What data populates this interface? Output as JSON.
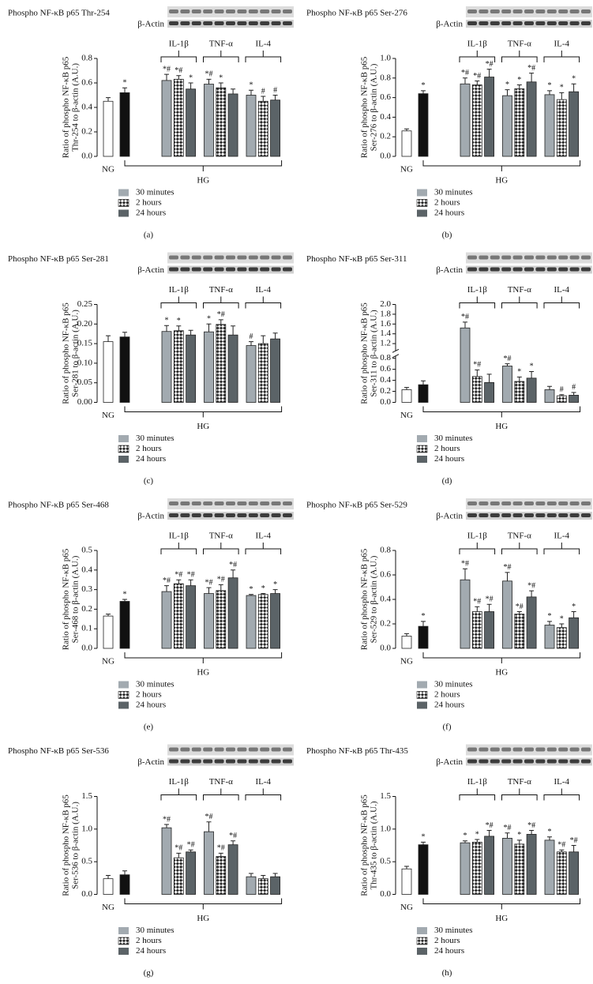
{
  "chart_data": [
    {
      "type": "bar",
      "title": "Phospho NF-κB p65 Thr-254",
      "blot_control": "β-Actin",
      "ylabel": [
        "Ratio of phospho NF-κB p65",
        "Thr-254 to β-actin (A.U.)"
      ],
      "panel": "(a)",
      "ylim": [
        0,
        0.8
      ],
      "yticks": [
        {
          "value": 0,
          "label": "0.0"
        },
        0.2,
        0.4,
        0.6,
        0.8
      ],
      "controls": [
        {
          "name": "NG",
          "value": 0.45,
          "error": 0.03,
          "color": "#ffffff",
          "mark": null
        },
        {
          "name": "HG",
          "value": 0.52,
          "error": 0.04,
          "color": "#111111",
          "mark": "*"
        }
      ],
      "groups": [
        "IL-1β",
        "TNF-α",
        "IL-4"
      ],
      "series": [
        {
          "name": "30 minutes",
          "color": "#a2aab0",
          "values": [
            0.62,
            0.59,
            0.5
          ],
          "errors": [
            0.05,
            0.04,
            0.04
          ],
          "marks": [
            "*#",
            "*#",
            "*"
          ]
        },
        {
          "name": "2 hours",
          "color": "#2b2b2b",
          "pattern": "checker",
          "values": [
            0.63,
            0.56,
            0.45
          ],
          "errors": [
            0.03,
            0.04,
            0.04
          ],
          "marks": [
            "*#",
            "*",
            "#"
          ]
        },
        {
          "name": "24 hours",
          "color": "#5b6367",
          "values": [
            0.55,
            0.51,
            0.46
          ],
          "errors": [
            0.05,
            0.04,
            0.04
          ],
          "marks": [
            "*",
            null,
            "#"
          ]
        }
      ]
    },
    {
      "type": "bar",
      "title": "Phospho NF-κB p65 Ser-276",
      "blot_control": "β-Actin",
      "ylabel": [
        "Ratio of phospho NF-κB p65",
        "Ser-276 to β-actin (A.U.)"
      ],
      "panel": "(b)",
      "ylim": [
        0,
        1
      ],
      "yticks": [
        {
          "value": 0,
          "label": "0.0"
        },
        0.2,
        0.4,
        0.6,
        0.8,
        {
          "value": 1,
          "label": "1.0"
        }
      ],
      "controls": [
        {
          "name": "NG",
          "value": 0.26,
          "error": 0.02,
          "color": "#ffffff",
          "mark": null
        },
        {
          "name": "HG",
          "value": 0.64,
          "error": 0.03,
          "color": "#111111",
          "mark": "*"
        }
      ],
      "groups": [
        "IL-1β",
        "TNF-α",
        "IL-4"
      ],
      "series": [
        {
          "name": "30 minutes",
          "color": "#a2aab0",
          "values": [
            0.74,
            0.62,
            0.63
          ],
          "errors": [
            0.06,
            0.06,
            0.04
          ],
          "marks": [
            "*#",
            "*",
            "*"
          ]
        },
        {
          "name": "2 hours",
          "color": "#2b2b2b",
          "pattern": "checker",
          "values": [
            0.73,
            0.69,
            0.58
          ],
          "errors": [
            0.04,
            0.04,
            0.07
          ],
          "marks": [
            "*#",
            "*",
            "*"
          ]
        },
        {
          "name": "24 hours",
          "color": "#5b6367",
          "values": [
            0.81,
            0.76,
            0.66
          ],
          "errors": [
            0.08,
            0.09,
            0.08
          ],
          "marks": [
            "*#",
            "*#",
            "*"
          ]
        }
      ]
    },
    {
      "type": "bar",
      "title": "Phospho NF-κB p65 Ser-281",
      "blot_control": "β-Actin",
      "ylabel": [
        "Ratio of phospho NF-κB p65",
        "Ser-281 to β-actin (A.U.)"
      ],
      "panel": "(c)",
      "ylim": [
        0,
        0.25
      ],
      "yticks": [
        {
          "value": 0,
          "label": "0.00"
        },
        0.05,
        {
          "value": 0.1,
          "label": "0.10"
        },
        0.15,
        {
          "value": 0.2,
          "label": "0.20"
        },
        0.25
      ],
      "controls": [
        {
          "name": "NG",
          "value": 0.155,
          "error": 0.015,
          "color": "#ffffff",
          "mark": null
        },
        {
          "name": "HG",
          "value": 0.167,
          "error": 0.012,
          "color": "#111111",
          "mark": null
        }
      ],
      "groups": [
        "IL-1β",
        "TNF-α",
        "IL-4"
      ],
      "series": [
        {
          "name": "30 minutes",
          "color": "#a2aab0",
          "values": [
            0.181,
            0.18,
            0.145
          ],
          "errors": [
            0.015,
            0.02,
            0.01
          ],
          "marks": [
            "*",
            "*",
            "#"
          ]
        },
        {
          "name": "2 hours",
          "color": "#2b2b2b",
          "pattern": "checker",
          "values": [
            0.183,
            0.199,
            0.15
          ],
          "errors": [
            0.012,
            0.012,
            0.02
          ],
          "marks": [
            "*",
            "*#",
            null
          ]
        },
        {
          "name": "24 hours",
          "color": "#5b6367",
          "values": [
            0.172,
            0.172,
            0.162
          ],
          "errors": [
            0.012,
            0.023,
            0.015
          ],
          "marks": [
            null,
            null,
            null
          ]
        }
      ]
    },
    {
      "type": "bar",
      "title": "Phospho NF-κB p65 Ser-311",
      "blot_control": "β-Actin",
      "ylabel": [
        "Ratio of phospho NF-κB p65",
        "Ser-311 to β-actin (A.U.)"
      ],
      "panel": "(d)",
      "ylim": [
        0,
        2
      ],
      "ybreak": [
        0.8,
        1.1
      ],
      "yticks": [
        {
          "value": 0,
          "label": "0.0"
        },
        0.2,
        0.4,
        0.6,
        0.8,
        1.2,
        1.4,
        1.6,
        1.8,
        {
          "value": 2,
          "label": "2.0"
        }
      ],
      "controls": [
        {
          "name": "NG",
          "value": 0.23,
          "error": 0.04,
          "color": "#ffffff",
          "mark": null
        },
        {
          "name": "HG",
          "value": 0.32,
          "error": 0.07,
          "color": "#111111",
          "mark": null
        }
      ],
      "groups": [
        "IL-1β",
        "TNF-α",
        "IL-4"
      ],
      "series": [
        {
          "name": "30 minutes",
          "color": "#a2aab0",
          "values": [
            1.52,
            0.66,
            0.23
          ],
          "errors": [
            0.12,
            0.04,
            0.06
          ],
          "marks": [
            "*#",
            "*#",
            null
          ]
        },
        {
          "name": "2 hours",
          "color": "#2b2b2b",
          "pattern": "checker",
          "values": [
            0.47,
            0.38,
            0.12
          ],
          "errors": [
            0.12,
            0.08,
            0.02
          ],
          "marks": [
            "*#",
            "*",
            "#"
          ]
        },
        {
          "name": "24 hours",
          "color": "#5b6367",
          "values": [
            0.36,
            0.44,
            0.13
          ],
          "errors": [
            0.15,
            0.12,
            0.05
          ],
          "marks": [
            null,
            "*",
            "#"
          ]
        }
      ]
    },
    {
      "type": "bar",
      "title": "Phospho NF-κB p65 Ser-468",
      "blot_control": "β-Actin",
      "ylabel": [
        "Ratio of phospho NF-κB p65",
        "Ser-468 to β-actin (A.U.)"
      ],
      "panel": "(e)",
      "ylim": [
        0,
        0.5
      ],
      "yticks": [
        {
          "value": 0,
          "label": "0.0"
        },
        0.1,
        0.2,
        0.3,
        0.4,
        0.5
      ],
      "controls": [
        {
          "name": "NG",
          "value": 0.165,
          "error": 0.01,
          "color": "#ffffff",
          "mark": null
        },
        {
          "name": "HG",
          "value": 0.24,
          "error": 0.01,
          "color": "#111111",
          "mark": "*"
        }
      ],
      "groups": [
        "IL-1β",
        "TNF-α",
        "IL-4"
      ],
      "series": [
        {
          "name": "30 minutes",
          "color": "#a2aab0",
          "values": [
            0.29,
            0.28,
            0.27
          ],
          "errors": [
            0.03,
            0.03,
            0.005
          ],
          "marks": [
            "*#",
            "*#",
            "*"
          ]
        },
        {
          "name": "2 hours",
          "color": "#2b2b2b",
          "pattern": "checker",
          "values": [
            0.33,
            0.295,
            0.275
          ],
          "errors": [
            0.02,
            0.03,
            0.005
          ],
          "marks": [
            "*#",
            "*#",
            "*"
          ]
        },
        {
          "name": "24 hours",
          "color": "#5b6367",
          "values": [
            0.32,
            0.36,
            0.28
          ],
          "errors": [
            0.03,
            0.04,
            0.02
          ],
          "marks": [
            "*#",
            "*#",
            "*"
          ]
        }
      ]
    },
    {
      "type": "bar",
      "title": "Phospho NF-κB p65 Ser-529",
      "blot_control": "β-Actin",
      "ylabel": [
        "Ratio of phospho NF-κB p65",
        "Ser-529 to β-actin (A.U.)"
      ],
      "panel": "(f)",
      "ylim": [
        0,
        0.8
      ],
      "yticks": [
        {
          "value": 0,
          "label": "0.0"
        },
        0.2,
        0.4,
        0.6,
        0.8
      ],
      "controls": [
        {
          "name": "NG",
          "value": 0.1,
          "error": 0.02,
          "color": "#ffffff",
          "mark": null
        },
        {
          "name": "HG",
          "value": 0.18,
          "error": 0.04,
          "color": "#111111",
          "mark": "*"
        }
      ],
      "groups": [
        "IL-1β",
        "TNF-α",
        "IL-4"
      ],
      "series": [
        {
          "name": "30 minutes",
          "color": "#a2aab0",
          "values": [
            0.56,
            0.55,
            0.19
          ],
          "errors": [
            0.09,
            0.07,
            0.03
          ],
          "marks": [
            "*#",
            "*#",
            "*"
          ]
        },
        {
          "name": "2 hours",
          "color": "#2b2b2b",
          "pattern": "checker",
          "values": [
            0.3,
            0.28,
            0.17
          ],
          "errors": [
            0.04,
            0.02,
            0.03
          ],
          "marks": [
            "*#",
            "*#",
            "*"
          ]
        },
        {
          "name": "24 hours",
          "color": "#5b6367",
          "values": [
            0.3,
            0.42,
            0.25
          ],
          "errors": [
            0.06,
            0.05,
            0.05
          ],
          "marks": [
            "*#",
            "*#",
            "*"
          ]
        }
      ]
    },
    {
      "type": "bar",
      "title": "Phospho NF-κB p65 Ser-536",
      "blot_control": "β-Actin",
      "ylabel": [
        "Ratio of phospho NF-κB p65",
        "Ser-536 to β-actin (A.U.)"
      ],
      "panel": "(g)",
      "ylim": [
        0,
        1.5
      ],
      "yticks": [
        {
          "value": 0,
          "label": "0.0"
        },
        0.5,
        {
          "value": 1,
          "label": "1.0"
        },
        1.5
      ],
      "controls": [
        {
          "name": "NG",
          "value": 0.24,
          "error": 0.05,
          "color": "#ffffff",
          "mark": null
        },
        {
          "name": "HG",
          "value": 0.3,
          "error": 0.06,
          "color": "#111111",
          "mark": null
        }
      ],
      "groups": [
        "IL-1β",
        "TNF-α",
        "IL-4"
      ],
      "series": [
        {
          "name": "30 minutes",
          "color": "#a2aab0",
          "values": [
            1.02,
            0.96,
            0.27
          ],
          "errors": [
            0.05,
            0.15,
            0.05
          ],
          "marks": [
            "*#",
            "*#",
            null
          ]
        },
        {
          "name": "2 hours",
          "color": "#2b2b2b",
          "pattern": "checker",
          "values": [
            0.56,
            0.58,
            0.24
          ],
          "errors": [
            0.07,
            0.05,
            0.05
          ],
          "marks": [
            "*#",
            "*#",
            null
          ]
        },
        {
          "name": "24 hours",
          "color": "#5b6367",
          "values": [
            0.65,
            0.76,
            0.27
          ],
          "errors": [
            0.03,
            0.06,
            0.05
          ],
          "marks": [
            "*#",
            "*#",
            null
          ]
        }
      ]
    },
    {
      "type": "bar",
      "title": "Phospho NF-κB p65 Thr-435",
      "blot_control": "β-Actin",
      "ylabel": [
        "Ratio of phospho NF-κB p65",
        "Thr-435 to β-actin (A.U.)"
      ],
      "panel": "(h)",
      "ylim": [
        0,
        1.5
      ],
      "yticks": [
        {
          "value": 0,
          "label": "0.0"
        },
        0.5,
        {
          "value": 1,
          "label": "1.0"
        },
        1.5
      ],
      "controls": [
        {
          "name": "NG",
          "value": 0.39,
          "error": 0.04,
          "color": "#ffffff",
          "mark": null
        },
        {
          "name": "HG",
          "value": 0.76,
          "error": 0.04,
          "color": "#111111",
          "mark": "*"
        }
      ],
      "groups": [
        "IL-1β",
        "TNF-α",
        "IL-4"
      ],
      "series": [
        {
          "name": "30 minutes",
          "color": "#a2aab0",
          "values": [
            0.79,
            0.86,
            0.83
          ],
          "errors": [
            0.03,
            0.08,
            0.05
          ],
          "marks": [
            "*",
            "*#",
            "*"
          ]
        },
        {
          "name": "2 hours",
          "color": "#2b2b2b",
          "pattern": "checker",
          "values": [
            0.8,
            0.77,
            0.65
          ],
          "errors": [
            0.04,
            0.06,
            0.03
          ],
          "marks": [
            "*",
            "*",
            "*#"
          ]
        },
        {
          "name": "24 hours",
          "color": "#5b6367",
          "values": [
            0.89,
            0.92,
            0.65
          ],
          "errors": [
            0.09,
            0.06,
            0.1
          ],
          "marks": [
            "*#",
            "*#",
            "*#"
          ]
        }
      ]
    }
  ]
}
